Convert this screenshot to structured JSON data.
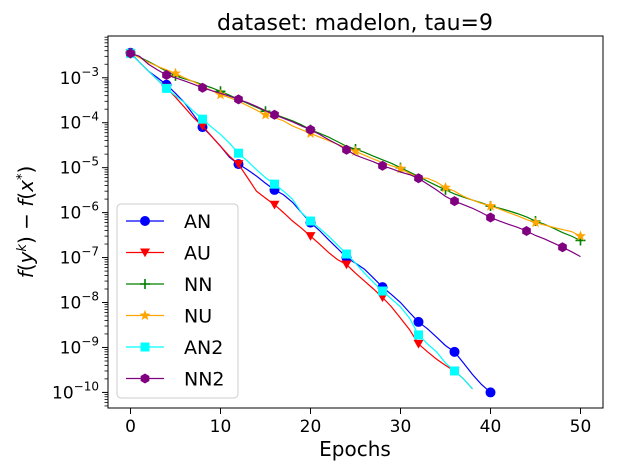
{
  "chart_data": {
    "type": "line",
    "title": "dataset: madelon, tau=9",
    "xlabel": "Epochs",
    "ylabel": "f(y^k) - f(x^*)",
    "xlim": [
      -2.5,
      52.5
    ],
    "ylim": [
      4.5e-11,
      0.0085
    ],
    "yscale": "log",
    "xticks": [
      0,
      10,
      20,
      30,
      40,
      50
    ],
    "xtick_labels": [
      "0",
      "10",
      "20",
      "30",
      "40",
      "50"
    ],
    "yticks": [
      1e-10,
      1e-09,
      1e-08,
      1e-07,
      1e-06,
      1e-05,
      0.0001,
      0.001
    ],
    "ytick_labels": [
      {
        "base": "10",
        "exp": "−10"
      },
      {
        "base": "10",
        "exp": "−9"
      },
      {
        "base": "10",
        "exp": "−8"
      },
      {
        "base": "10",
        "exp": "−7"
      },
      {
        "base": "10",
        "exp": "−6"
      },
      {
        "base": "10",
        "exp": "−5"
      },
      {
        "base": "10",
        "exp": "−4"
      },
      {
        "base": "10",
        "exp": "−3"
      }
    ],
    "legend_position": "lower-left",
    "series": [
      {
        "name": "AN",
        "color": "#0000ff",
        "marker": "circle",
        "marker_every": 4,
        "x": [
          0,
          1,
          2,
          3,
          4,
          5,
          6,
          7,
          8,
          9,
          10,
          11,
          12,
          13,
          14,
          15,
          16,
          17,
          18,
          19,
          20,
          21,
          22,
          23,
          24,
          25,
          26,
          27,
          28,
          29,
          30,
          31,
          32,
          33,
          34,
          35,
          36,
          37,
          38,
          39,
          40
        ],
        "y": [
          0.0036,
          0.0022,
          0.0014,
          0.001,
          0.0007,
          0.00045,
          0.00028,
          0.00015,
          8e-05,
          5e-05,
          3e-05,
          1.7e-05,
          1.2e-05,
          9e-06,
          6.5e-06,
          4.5e-06,
          3.2e-06,
          2.5e-06,
          1.7e-06,
          1e-06,
          6e-07,
          4e-07,
          2.5e-07,
          1.6e-07,
          1e-07,
          7.5e-08,
          5.5e-08,
          3.5e-08,
          2.2e-08,
          1.5e-08,
          1e-08,
          6e-09,
          3.7e-09,
          2.6e-09,
          1.7e-09,
          1.1e-09,
          8e-10,
          4.5e-10,
          2.5e-10,
          1.5e-10,
          1e-10
        ]
      },
      {
        "name": "AU",
        "color": "#ff0000",
        "marker": "triangle-down",
        "marker_every": 4,
        "x": [
          0,
          1,
          2,
          3,
          4,
          5,
          6,
          7,
          8,
          9,
          10,
          11,
          12,
          13,
          14,
          15,
          16,
          17,
          18,
          19,
          20,
          21,
          22,
          23,
          24,
          25,
          26,
          27,
          28,
          29,
          30,
          31,
          32,
          33,
          34,
          35,
          36,
          37,
          38
        ],
        "y": [
          0.0035,
          0.0022,
          0.0014,
          0.0009,
          0.0006,
          0.00037,
          0.00022,
          0.00013,
          8.5e-05,
          5e-05,
          3e-05,
          1.8e-05,
          1.2e-05,
          6e-06,
          3e-06,
          2.1e-06,
          1.5e-06,
          1e-06,
          6.5e-07,
          4.5e-07,
          3e-07,
          2e-07,
          1.3e-07,
          9e-08,
          7e-08,
          4.5e-08,
          3e-08,
          2e-08,
          1.3e-08,
          8e-09,
          4.5e-09,
          2.5e-09,
          1.2e-09,
          8e-10,
          5.5e-10,
          4e-10,
          3e-10,
          2e-10,
          1.2e-10
        ]
      },
      {
        "name": "NN",
        "color": "#008000",
        "marker": "plus",
        "marker_every": 5,
        "x": [
          0,
          1,
          2,
          3,
          4,
          5,
          6,
          7,
          8,
          9,
          10,
          11,
          12,
          13,
          14,
          15,
          16,
          17,
          18,
          19,
          20,
          21,
          22,
          23,
          24,
          25,
          26,
          27,
          28,
          29,
          30,
          31,
          32,
          33,
          34,
          35,
          36,
          37,
          38,
          39,
          40,
          41,
          42,
          43,
          44,
          45,
          46,
          47,
          48,
          49,
          50
        ],
        "y": [
          0.0035,
          0.0029,
          0.0023,
          0.0018,
          0.0014,
          0.0011,
          0.00095,
          0.00083,
          0.0007,
          0.0006,
          0.0005,
          0.00041,
          0.00033,
          0.00027,
          0.00022,
          0.00018,
          0.000155,
          0.00013,
          0.00011,
          9e-05,
          7e-05,
          5.8e-05,
          4.8e-05,
          3.8e-05,
          3e-05,
          2.6e-05,
          2.2e-05,
          1.8e-05,
          1.5e-05,
          1.25e-05,
          1e-05,
          8e-06,
          6.4e-06,
          5e-06,
          4e-06,
          3.2e-06,
          2.6e-06,
          2.2e-06,
          1.9e-06,
          1.65e-06,
          1.4e-06,
          1.25e-06,
          1.1e-06,
          9.5e-07,
          8e-07,
          6.5e-07,
          5.5e-07,
          4.5e-07,
          3.6e-07,
          3e-07,
          2.4e-07
        ]
      },
      {
        "name": "NU",
        "color": "#ffa500",
        "marker": "star",
        "marker_every": 5,
        "x": [
          0,
          1,
          2,
          3,
          4,
          5,
          6,
          7,
          8,
          9,
          10,
          11,
          12,
          13,
          14,
          15,
          16,
          17,
          18,
          19,
          20,
          21,
          22,
          23,
          24,
          25,
          26,
          27,
          28,
          29,
          30,
          31,
          32,
          33,
          34,
          35,
          36,
          37,
          38,
          39,
          40,
          41,
          42,
          43,
          44,
          45,
          46,
          47,
          48,
          49,
          50
        ],
        "y": [
          0.0035,
          0.0028,
          0.0022,
          0.0018,
          0.0015,
          0.00125,
          0.001,
          0.00082,
          0.00065,
          0.00052,
          0.00042,
          0.00036,
          0.0003,
          0.00024,
          0.00019,
          0.00015,
          0.00013,
          0.00011,
          8.5e-05,
          7e-05,
          5.8e-05,
          4.8e-05,
          4e-05,
          3.3e-05,
          2.8e-05,
          2.3e-05,
          1.9e-05,
          1.55e-05,
          1.3e-05,
          1.1e-05,
          9.5e-06,
          7.5e-06,
          6e-06,
          5.8e-06,
          4.8e-06,
          3.6e-06,
          3e-06,
          2.3e-06,
          1.9e-06,
          1.6e-06,
          1.4e-06,
          1.2e-06,
          1e-06,
          8.5e-07,
          7e-07,
          6e-07,
          5.3e-07,
          4.7e-07,
          4.2e-07,
          3.8e-07,
          3e-07
        ]
      },
      {
        "name": "AN2",
        "color": "#00ffff",
        "marker": "square",
        "marker_every": 4,
        "x": [
          0,
          1,
          2,
          3,
          4,
          5,
          6,
          7,
          8,
          9,
          10,
          11,
          12,
          13,
          14,
          15,
          16,
          17,
          18,
          19,
          20,
          21,
          22,
          23,
          24,
          25,
          26,
          27,
          28,
          29,
          30,
          31,
          32,
          33,
          34,
          35,
          36,
          37,
          38
        ],
        "y": [
          0.0035,
          0.0022,
          0.0014,
          0.0009,
          0.00058,
          0.0004,
          0.00028,
          0.00018,
          0.00012,
          8e-05,
          5.5e-05,
          3.5e-05,
          2.1e-05,
          1.4e-05,
          9e-06,
          6e-06,
          4.3e-06,
          3e-06,
          2e-06,
          1e-06,
          6.5e-07,
          4.5e-07,
          3e-07,
          1.9e-07,
          1.2e-07,
          7.5e-08,
          4.5e-08,
          2.8e-08,
          1.8e-08,
          1.2e-08,
          8e-09,
          4.5e-09,
          1.9e-09,
          1.2e-09,
          8e-10,
          4.5e-10,
          3e-10,
          2e-10,
          1.2e-10
        ]
      },
      {
        "name": "NN2",
        "color": "#800080",
        "marker": "hexagon",
        "marker_every": 4,
        "x": [
          0,
          1,
          2,
          3,
          4,
          5,
          6,
          7,
          8,
          9,
          10,
          11,
          12,
          13,
          14,
          15,
          16,
          17,
          18,
          19,
          20,
          21,
          22,
          23,
          24,
          25,
          26,
          27,
          28,
          29,
          30,
          31,
          32,
          33,
          34,
          35,
          36,
          37,
          38,
          39,
          40,
          41,
          42,
          43,
          44,
          45,
          46,
          47,
          48,
          49,
          50
        ],
        "y": [
          0.0035,
          0.003,
          0.002,
          0.0015,
          0.00115,
          0.001,
          0.00085,
          0.00072,
          0.0006,
          0.00052,
          0.00045,
          0.00039,
          0.00033,
          0.00028,
          0.00023,
          0.000185,
          0.00015,
          0.000125,
          0.000105,
          8.5e-05,
          7e-05,
          5.5e-05,
          4.2e-05,
          3.3e-05,
          2.5e-05,
          1.9e-05,
          1.6e-05,
          1.35e-05,
          1.1e-05,
          9.5e-06,
          8e-06,
          7e-06,
          5.8e-06,
          4.3e-06,
          3.2e-06,
          2.3e-06,
          1.8e-06,
          1.5e-06,
          1.25e-06,
          1e-06,
          7.8e-07,
          6.5e-07,
          5.5e-07,
          4.7e-07,
          3.9e-07,
          3.1e-07,
          2.6e-07,
          2.1e-07,
          1.7e-07,
          1.35e-07,
          1.05e-07
        ]
      }
    ]
  }
}
